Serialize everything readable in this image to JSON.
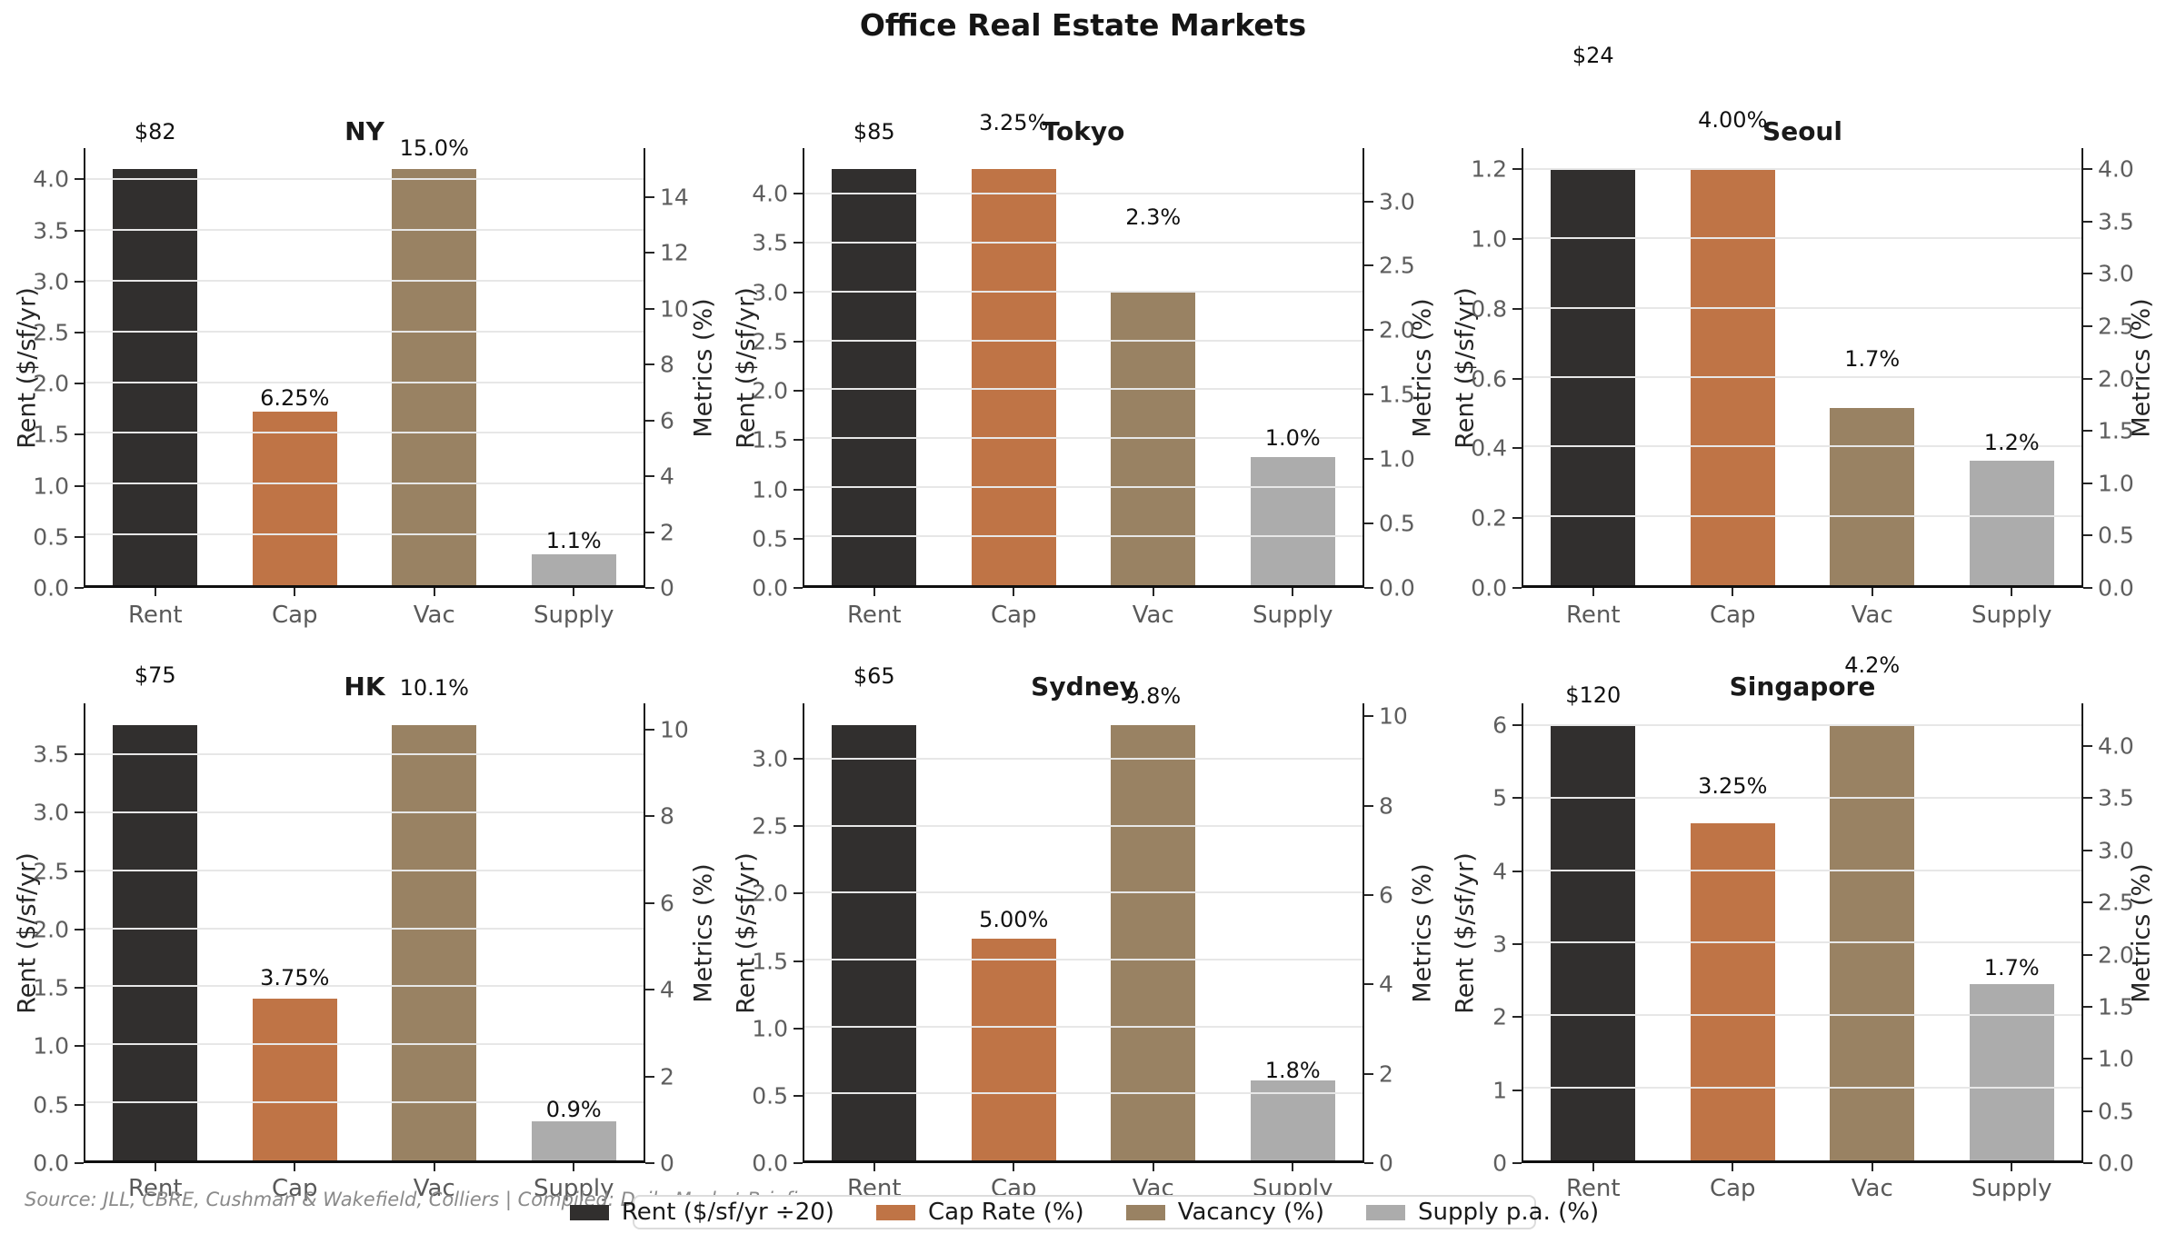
{
  "figure": {
    "title": "Office Real Estate Markets",
    "source_note": "Source: JLL, CBRE, Cushman & Wakefield, Colliers | Compiled: Daily Market Briefing"
  },
  "colors": {
    "rent": "#312f2e",
    "cap": "#bf7446",
    "vac": "#998263",
    "supply": "#acacac",
    "grid": "#e7e7e7",
    "spine": "#1a1a1a",
    "tick_label": "#5e5e5e",
    "axis_label": "#262626",
    "annotation": "#111111"
  },
  "legend": {
    "items": [
      {
        "label": "Rent ($/sf/yr ÷20)",
        "color_key": "rent"
      },
      {
        "label": "Cap Rate (%)",
        "color_key": "cap"
      },
      {
        "label": "Vacancy (%)",
        "color_key": "vac"
      },
      {
        "label": "Supply p.a. (%)",
        "color_key": "supply"
      }
    ]
  },
  "chart_data": [
    {
      "city": "NY",
      "type": "bar",
      "categories": [
        "Rent",
        "Cap",
        "Vac",
        "Supply"
      ],
      "left_axis": {
        "label": "Rent ($/sf/yr)",
        "ticks": [
          "0.0",
          "0.5",
          "1.0",
          "1.5",
          "2.0",
          "2.5",
          "3.0",
          "3.5",
          "4.0"
        ],
        "tick_values": [
          0,
          0.5,
          1,
          1.5,
          2,
          2.5,
          3,
          3.5,
          4
        ],
        "max": 4.305
      },
      "right_axis": {
        "label": "Metrics (%)",
        "ticks": [
          "0",
          "2",
          "4",
          "6",
          "8",
          "10",
          "12",
          "14"
        ],
        "tick_values": [
          0,
          2,
          4,
          6,
          8,
          10,
          12,
          14
        ],
        "max": 15.75
      },
      "bars": [
        {
          "category": "Rent",
          "series": "rent",
          "axis": "left",
          "value": 4.1,
          "rent_usd": 82,
          "label": "$82",
          "label_dy": 40
        },
        {
          "category": "Cap",
          "series": "cap",
          "axis": "right",
          "value": 6.25,
          "label": "6.25%",
          "label_dy": 14
        },
        {
          "category": "Vac",
          "series": "vac",
          "axis": "right",
          "value": 15.0,
          "label": "15.0%",
          "label_dy": 22
        },
        {
          "category": "Supply",
          "series": "supply",
          "axis": "right",
          "value": 1.1,
          "label": "1.1%",
          "label_dy": 14
        }
      ]
    },
    {
      "city": "Tokyo",
      "type": "bar",
      "categories": [
        "Rent",
        "Cap",
        "Vac",
        "Supply"
      ],
      "left_axis": {
        "label": "Rent ($/sf/yr)",
        "ticks": [
          "0.0",
          "0.5",
          "1.0",
          "1.5",
          "2.0",
          "2.5",
          "3.0",
          "3.5",
          "4.0"
        ],
        "tick_values": [
          0,
          0.5,
          1,
          1.5,
          2,
          2.5,
          3,
          3.5,
          4
        ],
        "max": 4.4625
      },
      "right_axis": {
        "label": "Metrics (%)",
        "ticks": [
          "0.0",
          "0.5",
          "1.0",
          "1.5",
          "2.0",
          "2.5",
          "3.0"
        ],
        "tick_values": [
          0,
          0.5,
          1,
          1.5,
          2,
          2.5,
          3
        ],
        "max": 3.4125
      },
      "bars": [
        {
          "category": "Rent",
          "series": "rent",
          "axis": "left",
          "value": 4.25,
          "rent_usd": 85,
          "label": "$85",
          "label_dy": 40
        },
        {
          "category": "Cap",
          "series": "cap",
          "axis": "right",
          "value": 3.25,
          "label": "3.25%",
          "label_dy": 50
        },
        {
          "category": "Vac",
          "series": "vac",
          "axis": "right",
          "value": 2.3,
          "label": "2.3%",
          "label_dy": 80
        },
        {
          "category": "Supply",
          "series": "supply",
          "axis": "right",
          "value": 1.0,
          "label": "1.0%",
          "label_dy": 20
        }
      ]
    },
    {
      "city": "Seoul",
      "type": "bar",
      "categories": [
        "Rent",
        "Cap",
        "Vac",
        "Supply"
      ],
      "left_axis": {
        "label": "Rent ($/sf/yr)",
        "ticks": [
          "0.0",
          "0.2",
          "0.4",
          "0.6",
          "0.8",
          "1.0",
          "1.2"
        ],
        "tick_values": [
          0,
          0.2,
          0.4,
          0.6,
          0.8,
          1,
          1.2
        ],
        "max": 1.26
      },
      "right_axis": {
        "label": "Metrics (%)",
        "ticks": [
          "0.0",
          "0.5",
          "1.0",
          "1.5",
          "2.0",
          "2.5",
          "3.0",
          "3.5",
          "4.0"
        ],
        "tick_values": [
          0,
          0.5,
          1,
          1.5,
          2,
          2.5,
          3,
          3.5,
          4
        ],
        "max": 4.2
      },
      "bars": [
        {
          "category": "Rent",
          "series": "rent",
          "axis": "left",
          "value": 1.2,
          "rent_usd": 24,
          "label": "$24",
          "label_dy": 124
        },
        {
          "category": "Cap",
          "series": "cap",
          "axis": "right",
          "value": 4.0,
          "label": "4.00%",
          "label_dy": 53
        },
        {
          "category": "Vac",
          "series": "vac",
          "axis": "right",
          "value": 1.7,
          "label": "1.7%",
          "label_dy": 53
        },
        {
          "category": "Supply",
          "series": "supply",
          "axis": "right",
          "value": 1.2,
          "label": "1.2%",
          "label_dy": 19
        }
      ]
    },
    {
      "city": "HK",
      "type": "bar",
      "categories": [
        "Rent",
        "Cap",
        "Vac",
        "Supply"
      ],
      "left_axis": {
        "label": "Rent ($/sf/yr)",
        "ticks": [
          "0.0",
          "0.5",
          "1.0",
          "1.5",
          "2.0",
          "2.5",
          "3.0",
          "3.5"
        ],
        "tick_values": [
          0,
          0.5,
          1,
          1.5,
          2,
          2.5,
          3,
          3.5
        ],
        "max": 3.9375
      },
      "right_axis": {
        "label": "Metrics (%)",
        "ticks": [
          "0",
          "2",
          "4",
          "6",
          "8",
          "10"
        ],
        "tick_values": [
          0,
          2,
          4,
          6,
          8,
          10
        ],
        "max": 10.605
      },
      "bars": [
        {
          "category": "Rent",
          "series": "rent",
          "axis": "left",
          "value": 3.75,
          "rent_usd": 75,
          "label": "$75",
          "label_dy": 54
        },
        {
          "category": "Cap",
          "series": "cap",
          "axis": "right",
          "value": 3.75,
          "label": "3.75%",
          "label_dy": 22
        },
        {
          "category": "Vac",
          "series": "vac",
          "axis": "right",
          "value": 10.1,
          "label": "10.1%",
          "label_dy": 40
        },
        {
          "category": "Supply",
          "series": "supply",
          "axis": "right",
          "value": 0.9,
          "label": "0.9%",
          "label_dy": 12
        }
      ]
    },
    {
      "city": "Sydney",
      "type": "bar",
      "categories": [
        "Rent",
        "Cap",
        "Vac",
        "Supply"
      ],
      "left_axis": {
        "label": "Rent ($/sf/yr)",
        "ticks": [
          "0.0",
          "0.5",
          "1.0",
          "1.5",
          "2.0",
          "2.5",
          "3.0"
        ],
        "tick_values": [
          0,
          0.5,
          1,
          1.5,
          2,
          2.5,
          3
        ],
        "max": 3.4125
      },
      "right_axis": {
        "label": "Metrics (%)",
        "ticks": [
          "0",
          "2",
          "4",
          "6",
          "8",
          "10"
        ],
        "tick_values": [
          0,
          2,
          4,
          6,
          8,
          10
        ],
        "max": 10.29
      },
      "bars": [
        {
          "category": "Rent",
          "series": "rent",
          "axis": "left",
          "value": 3.25,
          "rent_usd": 65,
          "label": "$65",
          "label_dy": 53
        },
        {
          "category": "Cap",
          "series": "cap",
          "axis": "right",
          "value": 5.0,
          "label": "5.00%",
          "label_dy": 20
        },
        {
          "category": "Vac",
          "series": "vac",
          "axis": "right",
          "value": 9.8,
          "label": "9.8%",
          "label_dy": 31
        },
        {
          "category": "Supply",
          "series": "supply",
          "axis": "right",
          "value": 1.8,
          "label": "1.8%",
          "label_dy": 10
        }
      ]
    },
    {
      "city": "Singapore",
      "type": "bar",
      "categories": [
        "Rent",
        "Cap",
        "Vac",
        "Supply"
      ],
      "left_axis": {
        "label": "Rent ($/sf/yr)",
        "ticks": [
          "0",
          "1",
          "2",
          "3",
          "4",
          "5",
          "6"
        ],
        "tick_values": [
          0,
          1,
          2,
          3,
          4,
          5,
          6
        ],
        "max": 6.3
      },
      "right_axis": {
        "label": "Metrics (%)",
        "ticks": [
          "0.0",
          "0.5",
          "1.0",
          "1.5",
          "2.0",
          "2.5",
          "3.0",
          "3.5",
          "4.0"
        ],
        "tick_values": [
          0,
          0.5,
          1,
          1.5,
          2,
          2.5,
          3,
          3.5,
          4
        ],
        "max": 4.41
      },
      "bars": [
        {
          "category": "Rent",
          "series": "rent",
          "axis": "left",
          "value": 6.0,
          "rent_usd": 120,
          "label": "$120",
          "label_dy": 32
        },
        {
          "category": "Cap",
          "series": "cap",
          "axis": "right",
          "value": 3.25,
          "label": "3.25%",
          "label_dy": 40
        },
        {
          "category": "Vac",
          "series": "vac",
          "axis": "right",
          "value": 4.2,
          "label": "4.2%",
          "label_dy": 65
        },
        {
          "category": "Supply",
          "series": "supply",
          "axis": "right",
          "value": 1.7,
          "label": "1.7%",
          "label_dy": 17
        }
      ]
    }
  ]
}
